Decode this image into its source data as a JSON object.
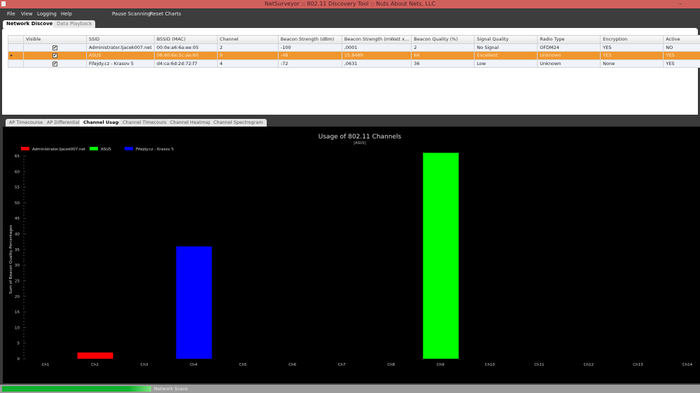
{
  "window": {
    "title": "NetSurveyor :: 802.11 Discovery Tool :: Nuts About Nets, LLC"
  },
  "menu": {
    "items": [
      "File",
      "View",
      "Logging",
      "Help",
      "Pause Scanning",
      "Reset Charts"
    ]
  },
  "top_tabs": [
    {
      "label": "Network Discovery",
      "active": true
    },
    {
      "label": "Data Playback",
      "active": false
    }
  ],
  "grid": {
    "columns": [
      "Visible",
      "SSID",
      "BSSID (MAC)",
      "Channel",
      "Beacon Strength (dBm)",
      "Beacon Strength (mWatt x...",
      "Beacon Quality (%)",
      "Signal Quality",
      "Radio Type",
      "Encryption",
      "Active"
    ],
    "rows": [
      {
        "visible": true,
        "cells": [
          "Administrator.ljacek007.net",
          "00:0e:a6:6a:ee:05",
          "2",
          "-100",
          ",0001",
          "2",
          "No Signal",
          "OFDM24",
          "YES",
          "NO"
        ],
        "selected": false
      },
      {
        "visible": true,
        "cells": [
          "ASUS",
          "08:60:6e:5c:ae:60",
          "9",
          "-48",
          "15,8489",
          "66",
          "Excellent",
          "Unknown",
          "YES",
          "YES"
        ],
        "selected": true
      },
      {
        "visible": true,
        "cells": [
          "Fifejdy.cz - Krasov 5",
          "d4:ca:6d:2d:72:f7",
          "4",
          "-72",
          ",0631",
          "36",
          "Low",
          "Unknown",
          "None",
          "YES"
        ],
        "selected": false
      }
    ]
  },
  "sub_tabs": [
    {
      "label": "AP Timecourse"
    },
    {
      "label": "AP Differential"
    },
    {
      "label": "Channel Usage",
      "active": true
    },
    {
      "label": "Channel Timecourse"
    },
    {
      "label": "Channel Heatmap"
    },
    {
      "label": "Channel Spectrogram"
    }
  ],
  "status": {
    "label": "Network Scans",
    "progress_percent": 22
  },
  "chart_data": {
    "type": "bar",
    "title": "Usage of 802.11 Channels",
    "subtitle": "[ASUS]",
    "ylabel": "Sum of Beacon Quality Percentages",
    "xlabel": "",
    "ylim": [
      0,
      65
    ],
    "yticks": [
      0,
      5,
      10,
      15,
      20,
      25,
      30,
      35,
      40,
      45,
      50,
      55,
      60,
      65
    ],
    "categories": [
      "Ch1",
      "Ch2",
      "Ch3",
      "Ch4",
      "Ch5",
      "Ch6",
      "Ch7",
      "Ch8",
      "Ch9",
      "Ch10",
      "Ch11",
      "Ch12",
      "Ch13",
      "Ch14"
    ],
    "legend_position": "top-left",
    "series": [
      {
        "name": "Administrator.ljacek007.net",
        "color": "#ff0000",
        "channel": "Ch2",
        "value": 2
      },
      {
        "name": "ASUS",
        "color": "#00ff00",
        "channel": "Ch9",
        "value": 66
      },
      {
        "name": "Fifejdy.cz - Krasov 5",
        "color": "#0000ff",
        "channel": "Ch4",
        "value": 36
      }
    ]
  }
}
